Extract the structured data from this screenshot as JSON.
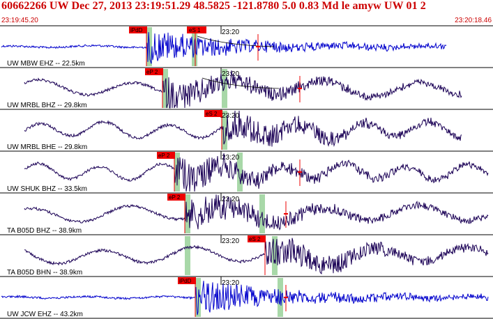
{
  "header": {
    "title": "60662266 UW Dec 27, 2013 23:19:51.29   48.5825 -121.8780  5.0 0.83 Md le amyw UW 01    2",
    "time_start": "23:19:45.20",
    "time_end": "23:20:18.46"
  },
  "colors": {
    "header_text": "#cc0000",
    "trace_blue": "#0000cc",
    "trace_dark": "#1a0055",
    "pick_box": "#ee0000",
    "pick_window": "#a8d8a8",
    "grid_line": "#000000"
  },
  "minute_mark": "23:20",
  "traces": [
    {
      "id": "mbw-ehz",
      "label": "UW MBW EHZ -- 22.5km",
      "color": "blue",
      "pick": "iPdD",
      "pick2": "eS 1"
    },
    {
      "id": "mrbl-bhz",
      "label": "UW MRBL BHZ -- 29.8km",
      "color": "dark",
      "pick": "eP 2",
      "pick2": ""
    },
    {
      "id": "mrbl-bhe",
      "label": "UW MRBL BHE -- 29.8km",
      "color": "dark",
      "pick": "eS 2",
      "pick2": ""
    },
    {
      "id": "shuk-bhz",
      "label": "UW SHUK BHZ -- 33.5km",
      "color": "dark",
      "pick": "eP 2",
      "pick2": ""
    },
    {
      "id": "b05d-bhz",
      "label": "TA B05D BHZ -- 38.9km",
      "color": "dark",
      "pick": "eP 2",
      "pick2": ""
    },
    {
      "id": "b05d-bhn",
      "label": "TA B05D BHN -- 38.9km",
      "color": "dark",
      "pick": "eS 2",
      "pick2": ""
    },
    {
      "id": "jcw-ehz",
      "label": "UW JCW EHZ -- 43.2km",
      "color": "blue",
      "pick": "iPdD",
      "pick2": ""
    }
  ]
}
